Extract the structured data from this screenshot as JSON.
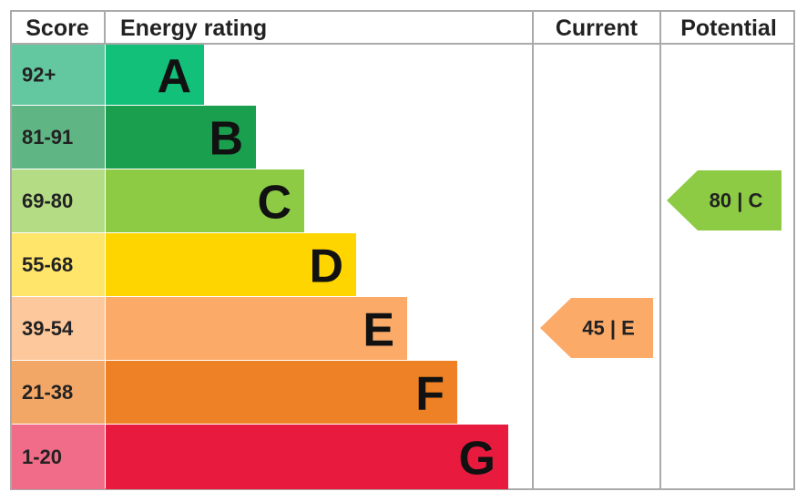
{
  "header": {
    "score": "Score",
    "rating": "Energy rating",
    "current": "Current",
    "potential": "Potential"
  },
  "bands": [
    {
      "score": "92+",
      "letter": "A"
    },
    {
      "score": "81-91",
      "letter": "B"
    },
    {
      "score": "69-80",
      "letter": "C"
    },
    {
      "score": "55-68",
      "letter": "D"
    },
    {
      "score": "39-54",
      "letter": "E"
    },
    {
      "score": "21-38",
      "letter": "F"
    },
    {
      "score": "1-20",
      "letter": "G"
    }
  ],
  "current": "45 | E",
  "potential": "80 | C"
}
